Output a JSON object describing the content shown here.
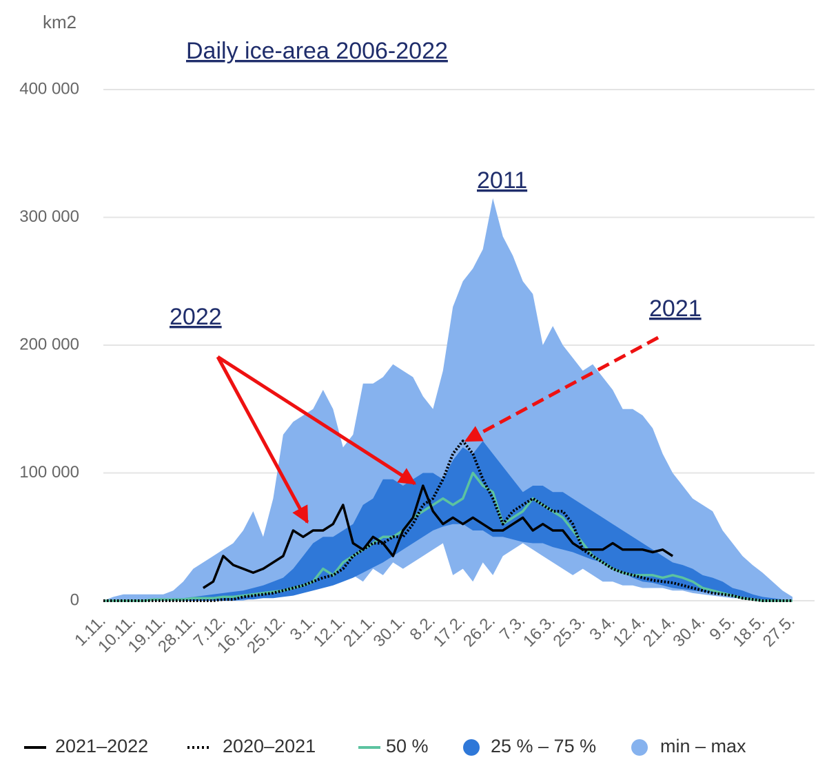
{
  "chart_data": {
    "type": "area-band",
    "title": "Daily ice-area 2006-2022",
    "y_label": "km2",
    "annotations": [
      "2011",
      "2022",
      "2021"
    ],
    "categories": [
      "1.11.",
      null,
      null,
      "10.11.",
      null,
      null,
      "19.11.",
      null,
      null,
      "28.11.",
      null,
      null,
      "7.12.",
      null,
      null,
      "16.12.",
      null,
      null,
      "25.12.",
      null,
      null,
      "3.1.",
      null,
      null,
      "12.1.",
      null,
      null,
      "21.1.",
      null,
      null,
      "30.1.",
      null,
      null,
      "8.2.",
      null,
      null,
      "17.2.",
      null,
      null,
      "26.2.",
      null,
      null,
      "7.3.",
      null,
      null,
      "16.3.",
      null,
      null,
      "25.3.",
      null,
      null,
      "3.4.",
      null,
      null,
      "12.4.",
      null,
      null,
      "21.4.",
      null,
      null,
      "30.4.",
      null,
      null,
      "9.5.",
      null,
      null,
      "18.5.",
      null,
      null,
      "27.5."
    ],
    "ylim": [
      0,
      400000
    ],
    "yticks": [
      0,
      {
        "value": 100000,
        "label": "100 000"
      },
      {
        "value": 200000,
        "label": "200 000"
      },
      {
        "value": 300000,
        "label": "300 000"
      },
      {
        "value": 400000,
        "label": "400 000"
      }
    ],
    "grid": true,
    "series": [
      {
        "name": "2021–2022",
        "color": "#000000",
        "dash": "solid",
        "values": [
          null,
          null,
          null,
          null,
          null,
          null,
          null,
          null,
          null,
          null,
          10000,
          15000,
          35000,
          28000,
          25000,
          22000,
          25000,
          30000,
          35000,
          55000,
          50000,
          55000,
          55000,
          60000,
          75000,
          45000,
          40000,
          50000,
          45000,
          35000,
          55000,
          65000,
          90000,
          70000,
          60000,
          65000,
          60000,
          65000,
          60000,
          55000,
          55000,
          60000,
          65000,
          55000,
          60000,
          55000,
          55000,
          45000,
          40000,
          40000,
          40000,
          45000,
          40000,
          40000,
          40000,
          38000,
          40000,
          35000,
          null,
          null,
          null,
          null,
          null,
          null,
          null,
          null,
          null,
          null,
          null,
          null
        ]
      },
      {
        "name": "2020–2021",
        "color": "#000000",
        "dash": "dotted",
        "values": [
          0,
          0,
          0,
          0,
          0,
          0,
          0,
          0,
          0,
          0,
          0,
          0,
          1000,
          1000,
          3000,
          4000,
          5000,
          6000,
          8000,
          10000,
          12000,
          15000,
          18000,
          20000,
          25000,
          35000,
          40000,
          45000,
          45000,
          50000,
          50000,
          60000,
          75000,
          80000,
          95000,
          115000,
          125000,
          115000,
          95000,
          80000,
          60000,
          70000,
          75000,
          80000,
          75000,
          70000,
          70000,
          60000,
          40000,
          35000,
          30000,
          25000,
          22000,
          20000,
          18000,
          16000,
          15000,
          14000,
          12000,
          10000,
          8000,
          6000,
          5000,
          4000,
          2000,
          1000,
          0,
          0,
          0,
          0
        ]
      },
      {
        "name": "50 %",
        "color": "#5cc3a0",
        "dash": "solid",
        "values": [
          0,
          0,
          0,
          0,
          0,
          1000,
          1000,
          1000,
          1000,
          2000,
          2000,
          2000,
          3000,
          3000,
          4000,
          5000,
          6000,
          7000,
          8000,
          10000,
          12000,
          15000,
          25000,
          20000,
          30000,
          35000,
          40000,
          45000,
          50000,
          50000,
          55000,
          65000,
          70000,
          75000,
          80000,
          75000,
          80000,
          100000,
          90000,
          85000,
          60000,
          65000,
          70000,
          80000,
          75000,
          70000,
          65000,
          55000,
          45000,
          35000,
          30000,
          25000,
          22000,
          20000,
          20000,
          20000,
          18000,
          20000,
          18000,
          15000,
          10000,
          8000,
          6000,
          4000,
          2000,
          1000,
          0,
          0,
          0,
          0
        ]
      },
      {
        "name": "25 % – 75 %",
        "color": "#2f78d8",
        "values": [
          0,
          0,
          0,
          0,
          0,
          1000,
          1000,
          2000,
          2000,
          3000,
          4000,
          5000,
          6000,
          7000,
          8000,
          10000,
          12000,
          15000,
          18000,
          25000,
          35000,
          45000,
          50000,
          50000,
          55000,
          60000,
          75000,
          80000,
          95000,
          95000,
          90000,
          95000,
          100000,
          100000,
          95000,
          110000,
          120000,
          115000,
          125000,
          115000,
          105000,
          95000,
          85000,
          90000,
          90000,
          85000,
          85000,
          80000,
          75000,
          70000,
          65000,
          60000,
          55000,
          50000,
          45000,
          40000,
          35000,
          30000,
          28000,
          25000,
          20000,
          18000,
          15000,
          10000,
          8000,
          5000,
          3000,
          2000,
          1000,
          0
        ],
        "lower": [
          0,
          0,
          0,
          0,
          0,
          0,
          0,
          0,
          0,
          0,
          0,
          0,
          0,
          0,
          1000,
          1000,
          2000,
          2000,
          3000,
          4000,
          6000,
          8000,
          10000,
          12000,
          15000,
          18000,
          22000,
          26000,
          30000,
          35000,
          40000,
          45000,
          50000,
          55000,
          58000,
          60000,
          60000,
          55000,
          55000,
          50000,
          50000,
          48000,
          46000,
          45000,
          45000,
          42000,
          40000,
          38000,
          35000,
          32000,
          30000,
          26000,
          22000,
          18000,
          15000,
          14000,
          12000,
          10000,
          9000,
          8000,
          7000,
          6000,
          5000,
          4000,
          3000,
          2000,
          1000,
          0,
          0,
          0
        ]
      },
      {
        "name": "min – max",
        "color": "#86b2ee",
        "values": [
          0,
          3000,
          5000,
          5000,
          5000,
          5000,
          5000,
          8000,
          15000,
          25000,
          30000,
          35000,
          40000,
          45000,
          55000,
          70000,
          50000,
          80000,
          130000,
          140000,
          145000,
          150000,
          165000,
          150000,
          120000,
          130000,
          170000,
          170000,
          175000,
          185000,
          180000,
          175000,
          160000,
          150000,
          180000,
          230000,
          250000,
          260000,
          275000,
          315000,
          285000,
          270000,
          250000,
          240000,
          200000,
          215000,
          200000,
          190000,
          180000,
          185000,
          175000,
          165000,
          150000,
          150000,
          145000,
          135000,
          115000,
          100000,
          90000,
          80000,
          75000,
          70000,
          55000,
          45000,
          35000,
          28000,
          22000,
          15000,
          8000,
          3000
        ],
        "lower": [
          0,
          0,
          0,
          0,
          0,
          0,
          0,
          0,
          0,
          0,
          0,
          0,
          0,
          0,
          0,
          2000,
          3000,
          5000,
          8000,
          10000,
          12000,
          15000,
          15000,
          15000,
          18000,
          20000,
          15000,
          25000,
          20000,
          30000,
          25000,
          30000,
          35000,
          40000,
          45000,
          20000,
          25000,
          15000,
          30000,
          20000,
          35000,
          40000,
          45000,
          40000,
          35000,
          30000,
          25000,
          20000,
          25000,
          20000,
          15000,
          15000,
          12000,
          12000,
          10000,
          10000,
          10000,
          8000,
          8000,
          6000,
          5000,
          4000,
          3000,
          2000,
          2000,
          1000,
          0,
          0,
          0,
          0
        ]
      }
    ]
  }
}
